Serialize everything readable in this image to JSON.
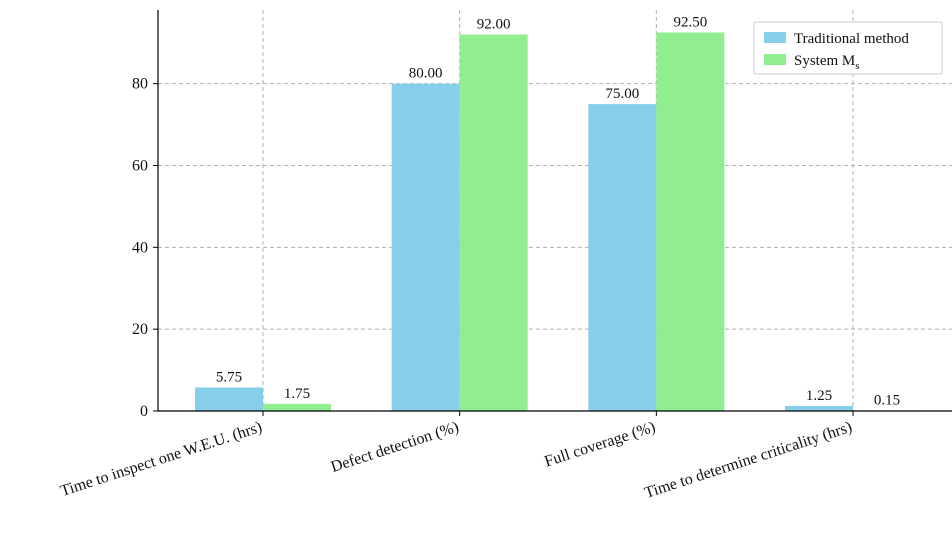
{
  "chart_data": {
    "type": "bar",
    "categories": [
      "Time to inspect one W.E.U. (hrs)",
      "Defect detection (%)",
      "Full coverage (%)",
      "Time to determine criticality (hrs)"
    ],
    "series": [
      {
        "name": "Traditional method",
        "color": "#87ceeb",
        "values": [
          5.75,
          80.0,
          75.0,
          1.25
        ],
        "labels": [
          "5.75",
          "80.00",
          "75.00",
          "1.25"
        ]
      },
      {
        "name": "System M",
        "name_subscript": "s",
        "color": "#90ee90",
        "values": [
          1.75,
          92.0,
          92.5,
          0.15
        ],
        "labels": [
          "1.75",
          "92.00",
          "92.50",
          "0.15"
        ]
      }
    ],
    "yticks": [
      "0",
      "20",
      "40",
      "60",
      "80"
    ],
    "ylim": [
      0,
      98
    ],
    "grid": true,
    "legend_position": "top-right"
  }
}
